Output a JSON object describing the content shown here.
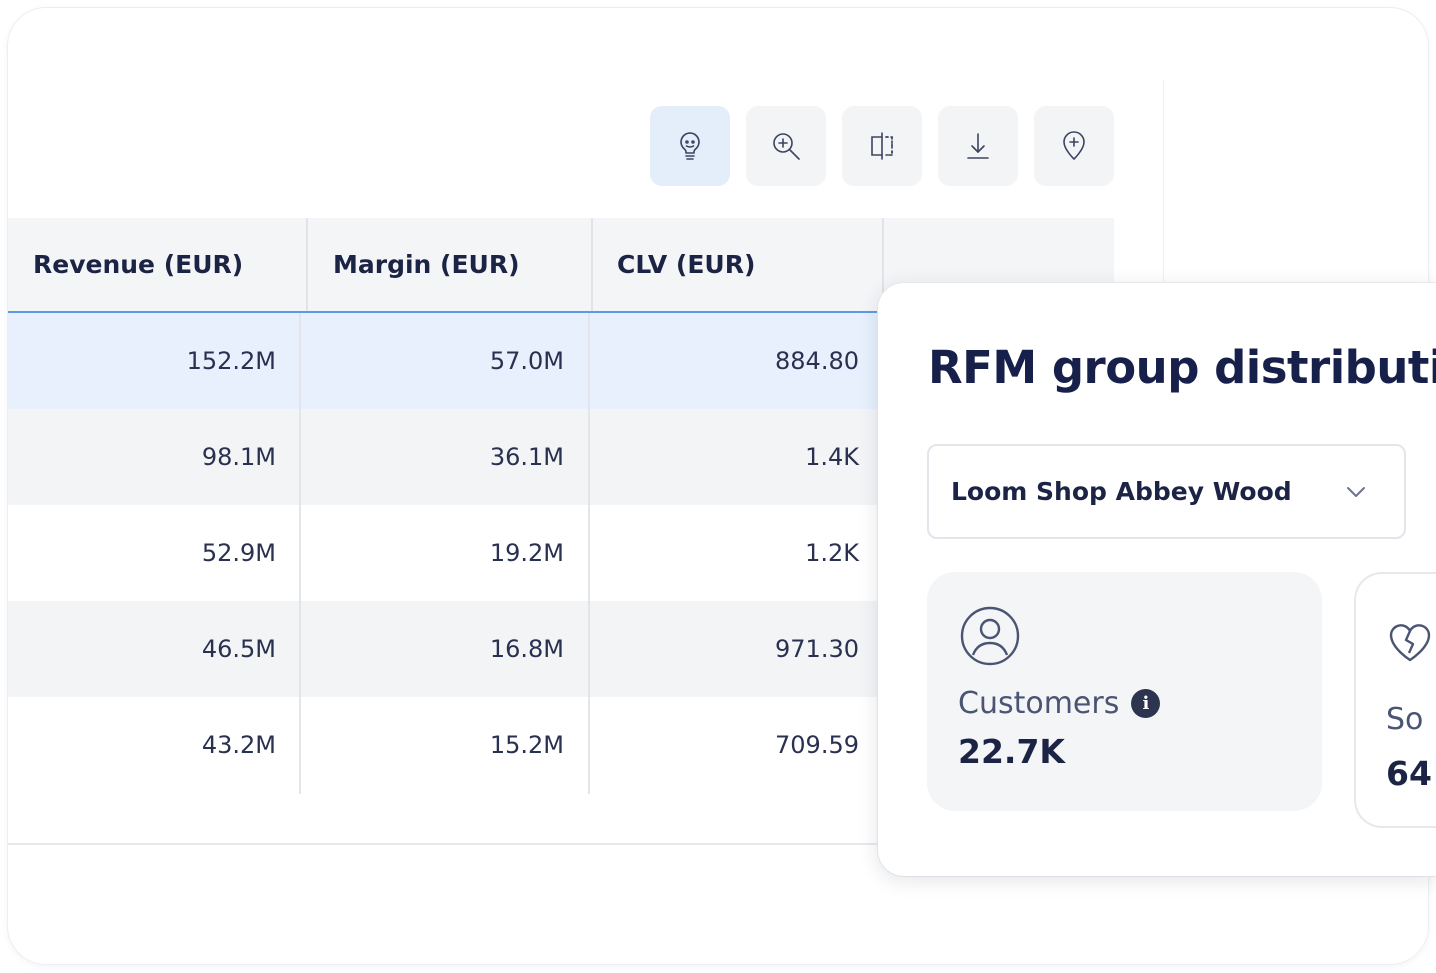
{
  "toolbar": {
    "buttons": [
      {
        "icon": "lightbulb-icon",
        "active": true
      },
      {
        "icon": "zoom-in-icon",
        "active": false
      },
      {
        "icon": "split-view-icon",
        "active": false
      },
      {
        "icon": "download-icon",
        "active": false
      },
      {
        "icon": "add-location-icon",
        "active": false
      }
    ]
  },
  "table": {
    "columns": [
      "Revenue (EUR)",
      "Margin (EUR)",
      "CLV (EUR)"
    ],
    "rows": [
      [
        "152.2M",
        "57.0M",
        "884.80"
      ],
      [
        "98.1M",
        "36.1M",
        "1.4K"
      ],
      [
        "52.9M",
        "19.2M",
        "1.2K"
      ],
      [
        "46.5M",
        "16.8M",
        "971.30"
      ],
      [
        "43.2M",
        "15.2M",
        "709.59"
      ]
    ]
  },
  "rfm": {
    "title": "RFM group distribution",
    "store_select": {
      "value": "Loom Shop Abbey Wood"
    },
    "customers": {
      "label": "Customers",
      "value": "22.7K",
      "info_icon": "info-icon"
    },
    "second_card": {
      "label": "So",
      "value": "64"
    }
  },
  "colors": {
    "accent_blue": "#5c9ae8",
    "selected_row": "#e7f0fc",
    "active_tool": "#e4eefb",
    "text_dark": "#1c2445"
  }
}
